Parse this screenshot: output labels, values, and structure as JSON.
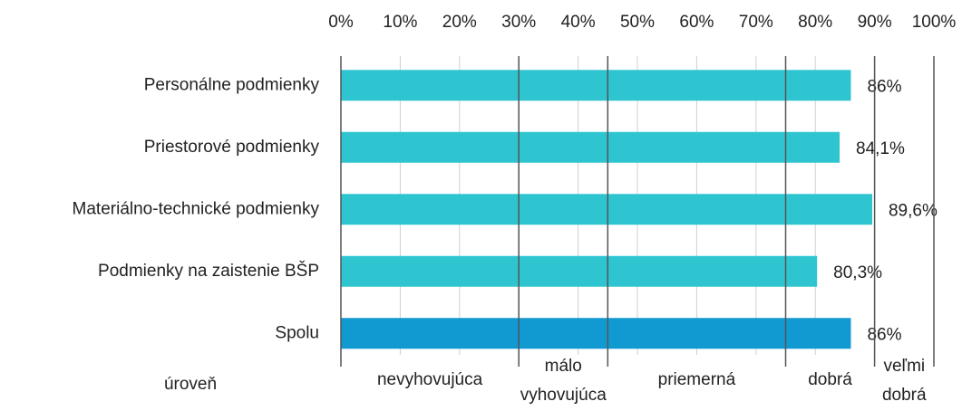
{
  "chart_data": {
    "type": "hbar",
    "categories": [
      "Personálne podmienky",
      "Priestorové podmienky",
      "Materiálno-technické podmienky",
      "Podmienky na zaistenie BŠP",
      "Spolu"
    ],
    "values": [
      86,
      84.1,
      89.6,
      80.3,
      86
    ],
    "value_labels": [
      "86%",
      "84,1%",
      "89,6%",
      "80,3%",
      "86%"
    ],
    "colors": [
      "#2ec5d1",
      "#2ec5d1",
      "#2ec5d1",
      "#2ec5d1",
      "#1199d2"
    ],
    "xlim": [
      0,
      100
    ],
    "xticks": [
      {
        "value": 0,
        "label": "0%"
      },
      {
        "value": 10,
        "label": "10%"
      },
      {
        "value": 20,
        "label": "20%"
      },
      {
        "value": 30,
        "label": "30%"
      },
      {
        "value": 40,
        "label": "40%"
      },
      {
        "value": 50,
        "label": "50%"
      },
      {
        "value": 60,
        "label": "60%"
      },
      {
        "value": 70,
        "label": "70%"
      },
      {
        "value": 80,
        "label": "80%"
      },
      {
        "value": 90,
        "label": "90%"
      },
      {
        "value": 100,
        "label": "100%"
      }
    ],
    "grid": true,
    "zone_title": "úroveň",
    "zones": [
      {
        "label": "nevyhovujúca",
        "from": 0,
        "to": 30
      },
      {
        "label": "málo vyhovujúca",
        "from": 30,
        "to": 45
      },
      {
        "label": "priemerná",
        "from": 45,
        "to": 75
      },
      {
        "label": "dobrá",
        "from": 75,
        "to": 90
      },
      {
        "label": "veľmi dobrá",
        "from": 90,
        "to": 100
      }
    ]
  }
}
